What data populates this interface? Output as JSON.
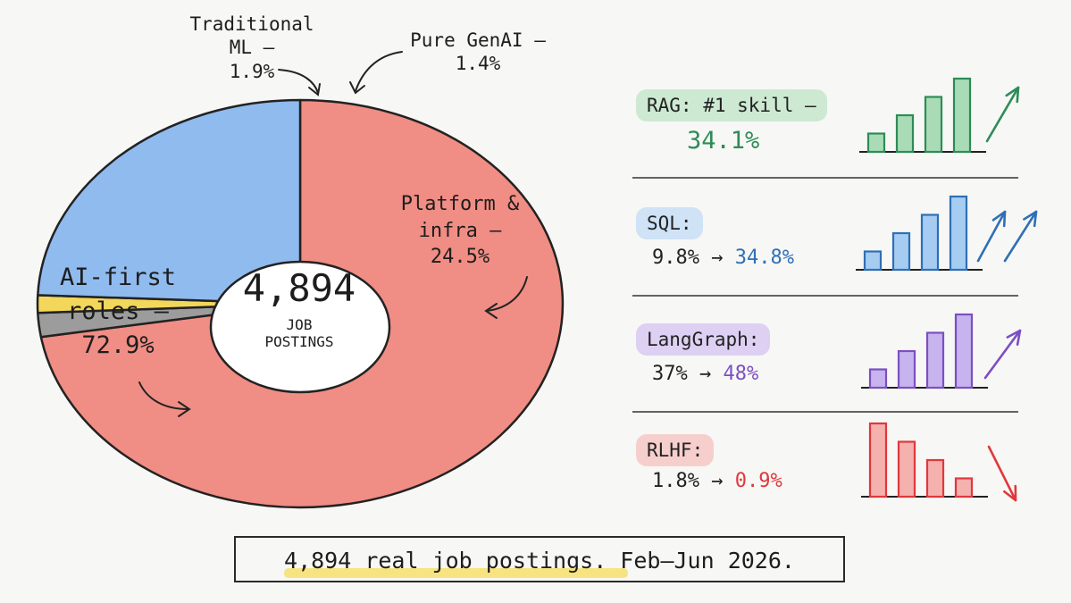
{
  "chart_data": [
    {
      "type": "pie",
      "donut": true,
      "center_value": "4,894",
      "center_label_line1": "JOB",
      "center_label_line2": "POSTINGS",
      "slices": [
        {
          "label_lines": [
            "AI-first",
            "roles —",
            "72.9%"
          ],
          "value": 72.9,
          "color": "#f08d84"
        },
        {
          "label_lines": [
            "Traditional",
            "ML —",
            "1.9%"
          ],
          "value": 1.9,
          "color": "#9c9c9c"
        },
        {
          "label_lines": [
            "Pure GenAI —",
            "1.4%"
          ],
          "value": 1.4,
          "color": "#f3d75a"
        },
        {
          "label_lines": [
            "Platform &",
            "infra —",
            "24.5%"
          ],
          "value": 24.5,
          "color": "#8fbbef"
        }
      ]
    },
    {
      "type": "bar",
      "label": "RAG: #1 skill —",
      "value_text": "34.1%",
      "bars": [
        1,
        2,
        3,
        4
      ],
      "trend": "up",
      "color": "#2e8b57",
      "fill": "#a9dcb6",
      "pill": "#cde9d2"
    },
    {
      "type": "bar",
      "label": "SQL:",
      "from_text": "9.8% →",
      "value_text": "34.8%",
      "bars": [
        1,
        2,
        3,
        4
      ],
      "trend": "up",
      "color": "#2f6fb6",
      "fill": "#a7ccf2",
      "pill": "#cfe2f6"
    },
    {
      "type": "bar",
      "label": "LangGraph:",
      "from_text": "37% →",
      "value_text": "48%",
      "bars": [
        1,
        2,
        3,
        4
      ],
      "trend": "up",
      "color": "#7b4fc2",
      "fill": "#c7b3ee",
      "pill": "#ddd0f3"
    },
    {
      "type": "bar",
      "label": "RLHF:",
      "from_text": "1.8% →",
      "value_text": "0.9%",
      "bars": [
        4,
        3,
        2,
        1
      ],
      "trend": "down",
      "color": "#e0383c",
      "fill": "#f4b1ae",
      "pill": "#f6cfcd"
    }
  ],
  "footer": {
    "text": "4,894 real job postings. Feb–Jun 2026."
  }
}
